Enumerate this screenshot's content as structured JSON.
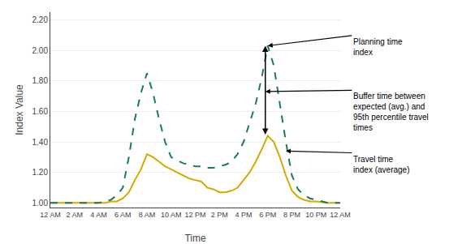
{
  "chart_data": {
    "type": "line",
    "xlabel": "Time",
    "ylabel": "Index Value",
    "x": [
      0,
      1,
      2,
      3,
      4,
      4.5,
      5,
      5.5,
      6,
      6.5,
      7,
      7.5,
      8,
      8.5,
      9,
      9.5,
      10,
      10.5,
      11,
      11.5,
      12,
      12.5,
      13,
      13.5,
      14,
      14.5,
      15,
      15.5,
      16,
      16.5,
      17,
      17.5,
      18,
      18.5,
      19,
      19.5,
      20,
      20.5,
      21,
      21.5,
      22,
      23,
      24
    ],
    "series": [
      {
        "color": "#D4AA00",
        "line_style": "solid",
        "values": [
          1.0,
          1.0,
          1.0,
          1.0,
          1.0,
          1.0,
          1.01,
          1.01,
          1.03,
          1.07,
          1.15,
          1.22,
          1.32,
          1.3,
          1.27,
          1.24,
          1.22,
          1.2,
          1.18,
          1.16,
          1.15,
          1.14,
          1.1,
          1.09,
          1.07,
          1.07,
          1.08,
          1.1,
          1.15,
          1.2,
          1.27,
          1.35,
          1.44,
          1.4,
          1.3,
          1.18,
          1.08,
          1.04,
          1.02,
          1.01,
          1.01,
          1.0,
          1.0
        ]
      },
      {
        "color": "#1a7a5e",
        "line_style": "dashed",
        "values": [
          1.0,
          1.0,
          1.0,
          1.0,
          1.0,
          1.01,
          1.02,
          1.05,
          1.1,
          1.3,
          1.55,
          1.72,
          1.85,
          1.72,
          1.55,
          1.4,
          1.3,
          1.28,
          1.26,
          1.25,
          1.24,
          1.24,
          1.23,
          1.23,
          1.24,
          1.25,
          1.27,
          1.32,
          1.4,
          1.52,
          1.65,
          1.82,
          2.03,
          1.9,
          1.65,
          1.4,
          1.18,
          1.09,
          1.05,
          1.03,
          1.02,
          1.0,
          1.0
        ]
      }
    ],
    "xlim": [
      0,
      24
    ],
    "xticks": [
      {
        "value": 0,
        "label": "12 AM"
      },
      {
        "value": 2,
        "label": "2 AM"
      },
      {
        "value": 4,
        "label": "4 AM"
      },
      {
        "value": 6,
        "label": "6 AM"
      },
      {
        "value": 8,
        "label": "8 AM"
      },
      {
        "value": 10,
        "label": "10 AM"
      },
      {
        "value": 12,
        "label": "12 PM"
      },
      {
        "value": 14,
        "label": "2 PM"
      },
      {
        "value": 16,
        "label": "4 PM"
      },
      {
        "value": 18,
        "label": "6 PM"
      },
      {
        "value": 20,
        "label": "8 PM"
      },
      {
        "value": 22,
        "label": "10 PM"
      },
      {
        "value": 24,
        "label": "12 AM"
      }
    ],
    "ylim": [
      0.97,
      2.25
    ],
    "yticks": [
      {
        "value": 1.0,
        "label": "1.00"
      },
      {
        "value": 1.2,
        "label": "1.20"
      },
      {
        "value": 1.4,
        "label": "1.40"
      },
      {
        "value": 1.6,
        "label": "1.60"
      },
      {
        "value": 1.8,
        "label": "1.80"
      },
      {
        "value": 2.0,
        "label": "2.00"
      },
      {
        "value": 2.2,
        "label": "2.20"
      }
    ],
    "grid": "y",
    "arrows": [
      {
        "x": 17.8,
        "y": [
          1.44,
          2.03
        ]
      }
    ],
    "annotations": [
      {
        "text": "Planning time\nindex",
        "x": 18.0,
        "y": 2.03
      },
      {
        "text": "Buffer time between\nexpected (avg.) and\n95th percentile travel\ntimes",
        "x": 17.8,
        "y": 1.73
      },
      {
        "text": "Travel time\nindex (average)",
        "x": 19.5,
        "y": 1.34
      }
    ]
  }
}
